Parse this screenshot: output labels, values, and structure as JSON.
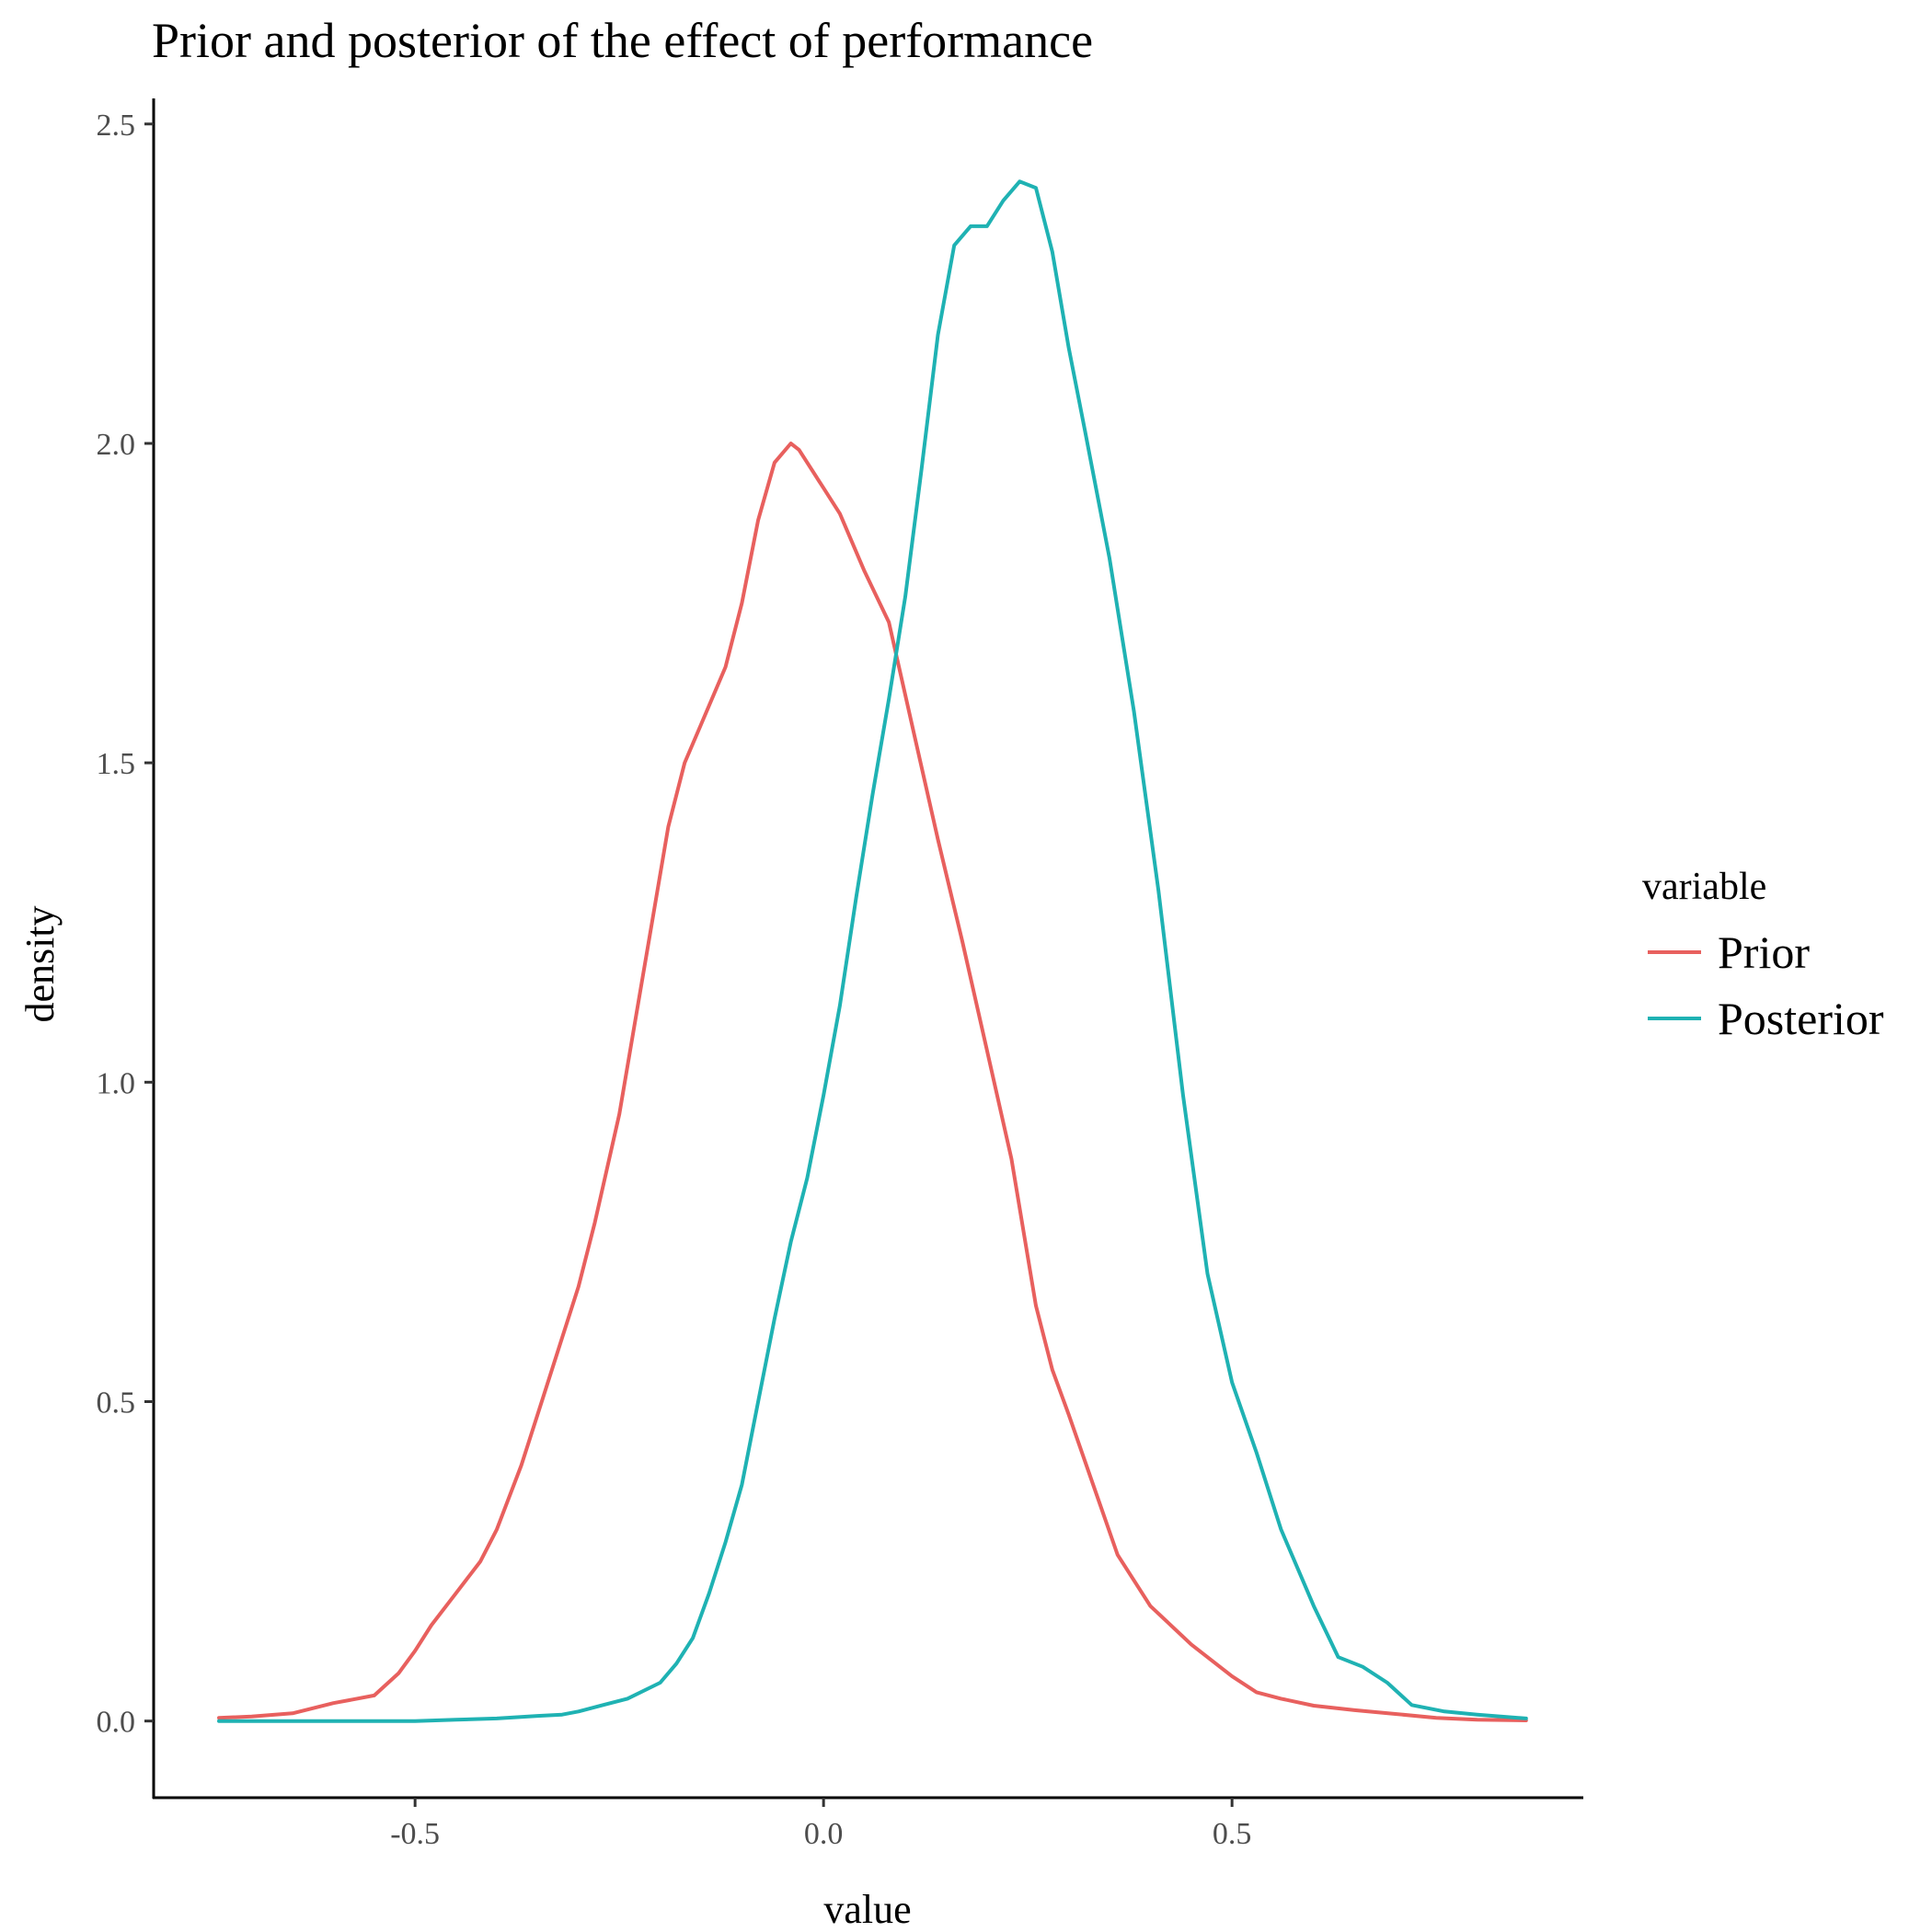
{
  "chart_data": {
    "type": "line",
    "title": "Prior and posterior of the effect of performance",
    "xlabel": "value",
    "ylabel": "density",
    "xlim": [
      -0.82,
      0.93
    ],
    "ylim": [
      -0.12,
      2.54
    ],
    "x_ticks": [
      -0.5,
      0.0,
      0.5
    ],
    "x_tick_labels": [
      "-0.5",
      "0.0",
      "0.5"
    ],
    "y_ticks": [
      0.0,
      0.5,
      1.0,
      1.5,
      2.0,
      2.5
    ],
    "y_tick_labels": [
      "0.0",
      "0.5",
      "1.0",
      "1.5",
      "2.0",
      "2.5"
    ],
    "grid": false,
    "legend": {
      "title": "variable",
      "position": "right"
    },
    "series": [
      {
        "name": "Prior",
        "color": "#E8605E",
        "x": [
          -0.74,
          -0.7,
          -0.65,
          -0.6,
          -0.55,
          -0.52,
          -0.5,
          -0.48,
          -0.45,
          -0.42,
          -0.4,
          -0.37,
          -0.35,
          -0.32,
          -0.3,
          -0.28,
          -0.25,
          -0.23,
          -0.21,
          -0.19,
          -0.17,
          -0.15,
          -0.12,
          -0.1,
          -0.08,
          -0.06,
          -0.04,
          -0.03,
          -0.02,
          0.0,
          0.02,
          0.05,
          0.08,
          0.11,
          0.14,
          0.17,
          0.2,
          0.23,
          0.26,
          0.28,
          0.3,
          0.33,
          0.36,
          0.4,
          0.45,
          0.5,
          0.53,
          0.56,
          0.6,
          0.65,
          0.7,
          0.75,
          0.8,
          0.86
        ],
        "values": [
          0.005,
          0.007,
          0.012,
          0.028,
          0.04,
          0.075,
          0.11,
          0.15,
          0.2,
          0.25,
          0.3,
          0.4,
          0.48,
          0.6,
          0.68,
          0.78,
          0.95,
          1.1,
          1.25,
          1.4,
          1.5,
          1.56,
          1.65,
          1.75,
          1.88,
          1.97,
          2.0,
          1.99,
          1.97,
          1.93,
          1.89,
          1.8,
          1.72,
          1.55,
          1.38,
          1.22,
          1.05,
          0.88,
          0.65,
          0.55,
          0.48,
          0.37,
          0.26,
          0.18,
          0.12,
          0.07,
          0.045,
          0.035,
          0.024,
          0.017,
          0.011,
          0.005,
          0.002,
          0.001
        ]
      },
      {
        "name": "Posterior",
        "color": "#1FB2B3",
        "x": [
          -0.74,
          -0.6,
          -0.5,
          -0.45,
          -0.4,
          -0.35,
          -0.32,
          -0.3,
          -0.27,
          -0.24,
          -0.2,
          -0.18,
          -0.16,
          -0.14,
          -0.12,
          -0.1,
          -0.08,
          -0.06,
          -0.04,
          -0.02,
          0.0,
          0.02,
          0.04,
          0.06,
          0.08,
          0.1,
          0.12,
          0.14,
          0.16,
          0.18,
          0.2,
          0.22,
          0.24,
          0.26,
          0.28,
          0.3,
          0.32,
          0.35,
          0.38,
          0.41,
          0.44,
          0.47,
          0.5,
          0.53,
          0.56,
          0.6,
          0.63,
          0.66,
          0.69,
          0.72,
          0.76,
          0.8,
          0.86
        ],
        "values": [
          0.0,
          0.0,
          0.0,
          0.002,
          0.004,
          0.008,
          0.01,
          0.015,
          0.025,
          0.035,
          0.06,
          0.09,
          0.13,
          0.2,
          0.28,
          0.37,
          0.5,
          0.63,
          0.75,
          0.85,
          0.98,
          1.12,
          1.29,
          1.45,
          1.6,
          1.76,
          1.96,
          2.17,
          2.31,
          2.34,
          2.34,
          2.38,
          2.41,
          2.4,
          2.3,
          2.15,
          2.02,
          1.82,
          1.58,
          1.3,
          0.98,
          0.7,
          0.53,
          0.42,
          0.3,
          0.18,
          0.1,
          0.085,
          0.06,
          0.025,
          0.015,
          0.01,
          0.004
        ]
      }
    ]
  }
}
